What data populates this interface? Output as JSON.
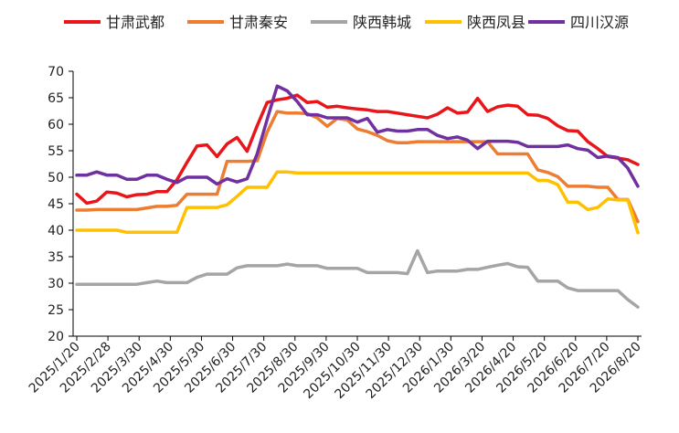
{
  "chart_data": {
    "type": "line",
    "title": "",
    "xlabel": "",
    "ylabel": "",
    "ylim": [
      20,
      70
    ],
    "yticks": [
      20,
      25,
      30,
      35,
      40,
      45,
      50,
      55,
      60,
      65,
      70
    ],
    "grid": false,
    "legend_position": "top",
    "x_tick_labels": [
      "2025/1/20",
      "2025/2/28",
      "2025/3/30",
      "2025/4/30",
      "2025/5/30",
      "2025/6/30",
      "2025/7/30",
      "2025/8/30",
      "2025/9/30",
      "2025/10/30",
      "2025/11/30",
      "2025/12/30",
      "2026/1/30",
      "2026/3/20",
      "2026/4/20",
      "2026/5/20",
      "2026/6/20",
      "2026/7/20",
      "2026/8/20"
    ],
    "series": [
      {
        "name": "甘肃武都",
        "color": "#e8151b",
        "values": [
          46.8,
          45.1,
          45.5,
          47.2,
          47.0,
          46.3,
          46.7,
          46.8,
          47.3,
          47.3,
          49.5,
          52.8,
          55.9,
          56.1,
          53.9,
          56.3,
          57.5,
          54.9,
          59.7,
          64.1,
          64.6,
          64.9,
          65.5,
          64.1,
          64.3,
          63.2,
          63.4,
          63.1,
          62.9,
          62.7,
          62.4,
          62.4,
          62.1,
          61.8,
          61.5,
          61.2,
          61.9,
          63.1,
          62.1,
          62.3,
          64.9,
          62.4,
          63.3,
          63.6,
          63.4,
          61.8,
          61.7,
          61.1,
          59.7,
          58.8,
          58.7,
          56.7,
          55.4,
          53.9,
          53.6,
          53.3,
          52.4
        ]
      },
      {
        "name": "甘肃秦安",
        "color": "#ed7d31",
        "values": [
          43.8,
          43.8,
          43.9,
          43.9,
          43.9,
          43.9,
          43.9,
          44.2,
          44.5,
          44.5,
          44.7,
          46.8,
          46.8,
          46.8,
          46.8,
          53.0,
          53.0,
          53.0,
          53.1,
          58.5,
          62.4,
          62.1,
          62.1,
          62.0,
          61.2,
          59.6,
          61.1,
          60.8,
          59.1,
          58.6,
          57.9,
          56.9,
          56.5,
          56.5,
          56.7,
          56.7,
          56.7,
          56.7,
          56.7,
          56.7,
          56.7,
          56.7,
          54.4,
          54.4,
          54.4,
          54.4,
          51.4,
          50.9,
          50.1,
          48.3,
          48.3,
          48.3,
          48.1,
          48.1,
          45.8,
          45.8,
          41.6
        ]
      },
      {
        "name": "陕西韩城",
        "color": "#a5a5a5",
        "values": [
          29.8,
          29.8,
          29.8,
          29.8,
          29.8,
          29.8,
          29.8,
          30.1,
          30.4,
          30.1,
          30.1,
          30.1,
          31.1,
          31.7,
          31.7,
          31.7,
          32.9,
          33.3,
          33.3,
          33.3,
          33.3,
          33.6,
          33.3,
          33.3,
          33.3,
          32.8,
          32.8,
          32.8,
          32.8,
          32.0,
          32.0,
          32.0,
          32.0,
          31.8,
          36.1,
          32.0,
          32.3,
          32.3,
          32.3,
          32.6,
          32.6,
          33.0,
          33.4,
          33.7,
          33.1,
          33.0,
          30.4,
          30.4,
          30.4,
          29.1,
          28.6,
          28.6,
          28.6,
          28.6,
          28.6,
          26.9,
          25.5
        ]
      },
      {
        "name": "陕西凤县",
        "color": "#ffc000",
        "values": [
          40.0,
          40.0,
          40.0,
          40.0,
          40.0,
          39.6,
          39.6,
          39.6,
          39.6,
          39.6,
          39.6,
          44.3,
          44.3,
          44.3,
          44.3,
          44.8,
          46.4,
          48.1,
          48.1,
          48.1,
          51.0,
          51.0,
          50.8,
          50.8,
          50.8,
          50.8,
          50.8,
          50.8,
          50.8,
          50.8,
          50.8,
          50.8,
          50.8,
          50.8,
          50.8,
          50.8,
          50.8,
          50.8,
          50.8,
          50.8,
          50.8,
          50.8,
          50.8,
          50.8,
          50.8,
          50.8,
          49.4,
          49.4,
          48.6,
          45.3,
          45.3,
          43.9,
          44.3,
          45.9,
          45.7,
          45.7,
          39.5
        ]
      },
      {
        "name": "四川汉源",
        "color": "#7030a0",
        "values": [
          50.4,
          50.4,
          51.0,
          50.4,
          50.4,
          49.6,
          49.6,
          50.4,
          50.4,
          49.6,
          49.0,
          50.0,
          50.0,
          50.0,
          48.7,
          49.7,
          49.1,
          49.7,
          54.4,
          60.9,
          67.2,
          66.3,
          64.3,
          61.8,
          61.8,
          61.2,
          61.2,
          61.2,
          60.4,
          61.1,
          58.5,
          59.0,
          58.7,
          58.7,
          59.0,
          59.0,
          57.9,
          57.3,
          57.6,
          57.0,
          55.4,
          56.8,
          56.8,
          56.8,
          56.6,
          55.8,
          55.8,
          55.8,
          55.8,
          56.1,
          55.4,
          55.1,
          53.7,
          54.0,
          53.7,
          51.7,
          48.3
        ]
      }
    ]
  }
}
